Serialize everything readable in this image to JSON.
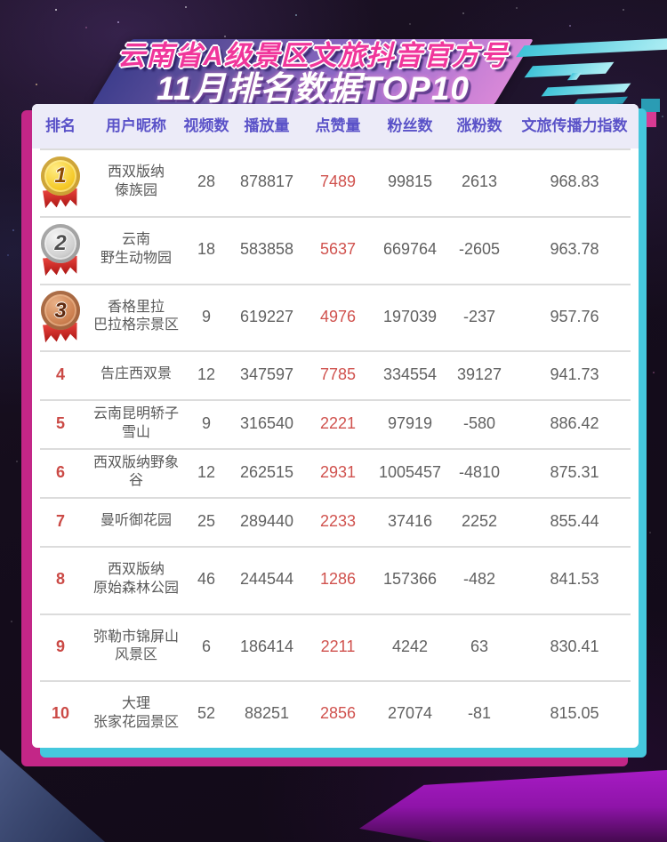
{
  "title": {
    "line1": "云南省A级景区文旅抖音官方号",
    "line2": "11月排名数据TOP10"
  },
  "table": {
    "headers": {
      "rank": "排名",
      "name": "用户昵称",
      "videos": "视频数",
      "plays": "播放量",
      "likes": "点赞量",
      "fans": "粉丝数",
      "growth": "涨粉数",
      "index": "文旅传播力指数"
    },
    "rows": [
      {
        "rank": "1",
        "medal": "gold",
        "name1": "西双版纳",
        "name2": "傣族园",
        "videos": "28",
        "plays": "878817",
        "likes": "7489",
        "fans": "99815",
        "growth": "2613",
        "index": "968.83"
      },
      {
        "rank": "2",
        "medal": "silver",
        "name1": "云南",
        "name2": "野生动物园",
        "videos": "18",
        "plays": "583858",
        "likes": "5637",
        "fans": "669764",
        "growth": "-2605",
        "index": "963.78"
      },
      {
        "rank": "3",
        "medal": "bronze",
        "name1": "香格里拉",
        "name2": "巴拉格宗景区",
        "videos": "9",
        "plays": "619227",
        "likes": "4976",
        "fans": "197039",
        "growth": "-237",
        "index": "957.76"
      },
      {
        "rank": "4",
        "medal": "",
        "name1": "告庄西双景",
        "name2": "",
        "videos": "12",
        "plays": "347597",
        "likes": "7785",
        "fans": "334554",
        "growth": "39127",
        "index": "941.73"
      },
      {
        "rank": "5",
        "medal": "",
        "name1": "云南昆明轿子雪山",
        "name2": "",
        "videos": "9",
        "plays": "316540",
        "likes": "2221",
        "fans": "97919",
        "growth": "-580",
        "index": "886.42"
      },
      {
        "rank": "6",
        "medal": "",
        "name1": "西双版纳野象谷",
        "name2": "",
        "videos": "12",
        "plays": "262515",
        "likes": "2931",
        "fans": "1005457",
        "growth": "-4810",
        "index": "875.31"
      },
      {
        "rank": "7",
        "medal": "",
        "name1": "曼听御花园",
        "name2": "",
        "videos": "25",
        "plays": "289440",
        "likes": "2233",
        "fans": "37416",
        "growth": "2252",
        "index": "855.44"
      },
      {
        "rank": "8",
        "medal": "",
        "name1": "西双版纳",
        "name2": "原始森林公园",
        "videos": "46",
        "plays": "244544",
        "likes": "1286",
        "fans": "157366",
        "growth": "-482",
        "index": "841.53"
      },
      {
        "rank": "9",
        "medal": "",
        "name1": "弥勒市锦屏山",
        "name2": "风景区",
        "videos": "6",
        "plays": "186414",
        "likes": "2211",
        "fans": "4242",
        "growth": "63",
        "index": "830.41"
      },
      {
        "rank": "10",
        "medal": "",
        "name1": "大理",
        "name2": "张家花园景区",
        "videos": "52",
        "plays": "88251",
        "likes": "2856",
        "fans": "27074",
        "growth": "-81",
        "index": "815.05"
      }
    ]
  },
  "colors": {
    "background": "#140c1b",
    "card_shadow_magenta": "#c32687",
    "card_shadow_cyan": "#45c8dd",
    "header_text": "#5a52c8",
    "header_bg": "#ecebf8",
    "highlight_red": "#d0524e",
    "body_text": "#616161",
    "banner_gradient_start": "#3d3d8c",
    "banner_gradient_end": "#d988d8",
    "title_pink": "#f0369b",
    "deco_cyan": "#3fc3d8"
  }
}
